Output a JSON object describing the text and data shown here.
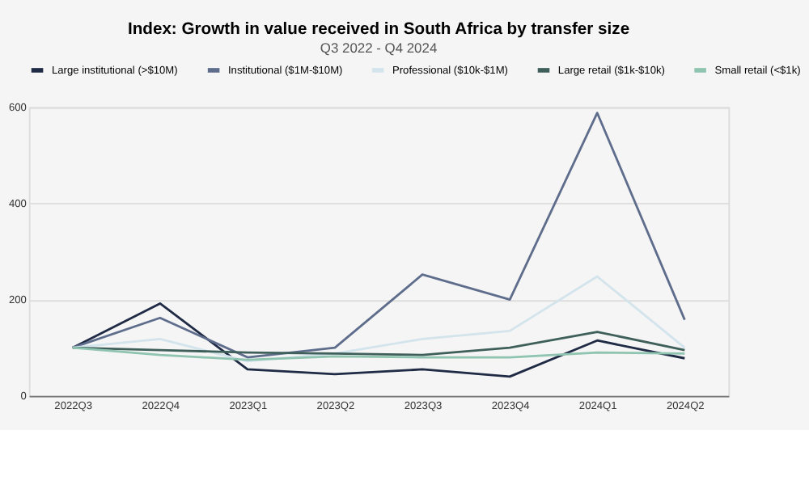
{
  "chart_data": {
    "type": "line",
    "title": "Index: Growth in value received in South Africa by transfer size",
    "subtitle": "Q3 2022 - Q4 2024",
    "categories": [
      "2022Q3",
      "2022Q4",
      "2023Q1",
      "2023Q2",
      "2023Q3",
      "2023Q4",
      "2024Q1",
      "2024Q2"
    ],
    "series": [
      {
        "name": "Large institutional (>$10M)",
        "color": "#1f2a44",
        "values": [
          100,
          192,
          55,
          45,
          55,
          40,
          115,
          78
        ]
      },
      {
        "name": "Institutional ($1M-$10M)",
        "color": "#5f6d8c",
        "values": [
          100,
          162,
          80,
          100,
          252,
          200,
          588,
          158
        ]
      },
      {
        "name": "Professional ($10k-$1M)",
        "color": "#d3e4ec",
        "values": [
          100,
          118,
          72,
          88,
          118,
          135,
          248,
          100
        ]
      },
      {
        "name": "Large retail ($1k-$10k)",
        "color": "#3f5f5a",
        "values": [
          100,
          95,
          90,
          88,
          85,
          100,
          133,
          95
        ]
      },
      {
        "name": "Small retail (<$1k)",
        "color": "#8fc4b0",
        "values": [
          100,
          85,
          75,
          82,
          80,
          80,
          90,
          88
        ]
      }
    ],
    "ylim": [
      0,
      600
    ],
    "yticks": [
      0,
      200,
      400,
      600
    ],
    "grid": "y",
    "legend": "top",
    "marker": "none",
    "line_style": "solid"
  }
}
